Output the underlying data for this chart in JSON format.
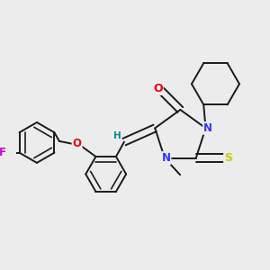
{
  "bg_color": "#ececec",
  "bond_color": "#1a1a1a",
  "atom_colors": {
    "O": "#e8000d",
    "N": "#3333ff",
    "S": "#cccc00",
    "F": "#cc00cc",
    "H": "#008b8b",
    "C": "#1a1a1a"
  },
  "lw": 1.4,
  "dbo": 0.018
}
